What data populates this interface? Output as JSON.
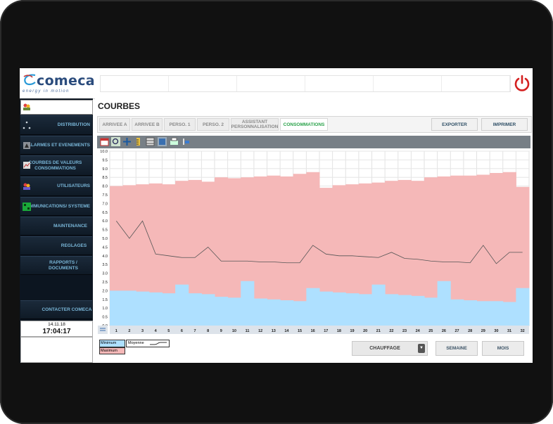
{
  "brand": {
    "name": "comeca",
    "tagline": "energy in motion",
    "accent": "#2a4b7c"
  },
  "power_icon": "power-icon",
  "sidebar": {
    "user_icon": "users-icon",
    "items": [
      {
        "label": "DISTRIBUTION",
        "icon": "distribution-icon"
      },
      {
        "label": "ALARMES  ET EVENEMENTS",
        "icon": "alarm-icon"
      },
      {
        "label": "COURBES DE VALEURS CONSOMMATIONS",
        "icon": "curves-icon"
      },
      {
        "label": "UTILISATEURS",
        "icon": "users-icon"
      },
      {
        "label": "COMMUNICATIONS/ SYSTEME",
        "icon": "network-icon"
      },
      {
        "label": "MAINTENANCE"
      },
      {
        "label": "REGLAGES"
      },
      {
        "label": "RAPPORTS / DOCUMENTS"
      },
      {
        "label": "CONTACTER COMECA"
      }
    ],
    "date": "14.11.18",
    "time": "17:04:17"
  },
  "main": {
    "title": "COURBES",
    "tabs": [
      {
        "label": "ARRIVEE A"
      },
      {
        "label": "ARRIVEE B"
      },
      {
        "label": "PERSO. 1"
      },
      {
        "label": "PERSO. 2"
      },
      {
        "label": "ASSISTANT PERSONNALISATION"
      },
      {
        "label": "CONSOMMATIONS",
        "active": true
      }
    ],
    "export_label": "EXPORTER",
    "print_label": "IMPRIMER",
    "toolbar_icons": [
      "calendar-icon",
      "zoom-icon",
      "pan-icon",
      "ruler-icon",
      "table-icon",
      "grid-icon",
      "print-icon",
      "settings-icon"
    ]
  },
  "legend": {
    "min_label": "Minimum",
    "max_label": "Maximum",
    "avg_label": "Moyenne"
  },
  "controls": {
    "mode_label": "CHAUFFAGE",
    "week_label": "SEMAINE",
    "month_label": "MOIS"
  },
  "colors": {
    "minimum": "#aee0ff",
    "maximum": "#f5b8b8",
    "average": "#555555",
    "active_tab": "#2aa24a"
  },
  "chart_data": {
    "type": "area",
    "x": [
      1,
      2,
      3,
      4,
      5,
      6,
      7,
      8,
      9,
      10,
      11,
      12,
      13,
      14,
      15,
      16,
      17,
      18,
      19,
      20,
      21,
      22,
      23,
      24,
      25,
      26,
      27,
      28,
      29,
      30,
      31,
      32
    ],
    "x_tick_labels": [
      "1",
      "2",
      "3",
      "4",
      "5",
      "6",
      "7",
      "8",
      "9",
      "10",
      "11",
      "12",
      "13",
      "14",
      "15",
      "16",
      "17",
      "18",
      "19",
      "20",
      "21",
      "22",
      "23",
      "24",
      "25",
      "26",
      "27",
      "28",
      "29",
      "30",
      "31",
      "32"
    ],
    "ylim": [
      0,
      10
    ],
    "y_ticks": [
      0,
      0.5,
      1,
      1.5,
      2,
      2.5,
      3,
      3.5,
      4,
      4.5,
      5,
      5.5,
      6,
      6.5,
      7,
      7.5,
      8,
      8.5,
      9,
      9.5,
      10
    ],
    "y_tick_labels": [
      "0.0",
      "0.5",
      "1.0",
      "1.5",
      "2.0",
      "2.5",
      "3.0",
      "3.5",
      "4.0",
      "4.5",
      "5.0",
      "5.5",
      "6.0",
      "6.5",
      "7.0",
      "7.5",
      "8.0",
      "8.5",
      "9.0",
      "9.5",
      "10.0"
    ],
    "grid": true,
    "series": [
      {
        "name": "Maximum",
        "style": "step",
        "values": [
          8.0,
          8.05,
          8.1,
          8.15,
          8.1,
          8.3,
          8.35,
          8.25,
          8.5,
          8.45,
          8.5,
          8.55,
          8.6,
          8.55,
          8.7,
          8.8,
          7.9,
          8.05,
          8.1,
          8.15,
          8.2,
          8.3,
          8.35,
          8.3,
          8.5,
          8.55,
          8.6,
          8.6,
          8.65,
          8.75,
          8.8,
          7.95
        ]
      },
      {
        "name": "Moyenne",
        "style": "line",
        "values": [
          6.0,
          5.0,
          6.0,
          4.1,
          4.0,
          3.9,
          3.9,
          4.5,
          3.7,
          3.7,
          3.7,
          3.65,
          3.65,
          3.6,
          3.6,
          4.6,
          4.1,
          4.0,
          4.0,
          3.95,
          3.9,
          4.2,
          3.85,
          3.8,
          3.7,
          3.65,
          3.65,
          3.6,
          4.6,
          3.55,
          4.2,
          4.2
        ]
      },
      {
        "name": "Minimum",
        "style": "step",
        "values": [
          2.0,
          2.0,
          1.95,
          1.9,
          1.85,
          2.35,
          1.85,
          1.8,
          1.65,
          1.6,
          2.55,
          1.55,
          1.5,
          1.45,
          1.4,
          2.15,
          1.95,
          1.9,
          1.85,
          1.8,
          2.35,
          1.8,
          1.75,
          1.7,
          1.6,
          2.55,
          1.5,
          1.45,
          1.4,
          1.4,
          1.35,
          2.15
        ]
      }
    ]
  }
}
